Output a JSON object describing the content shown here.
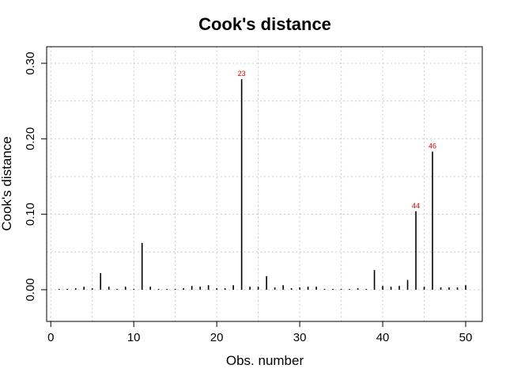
{
  "chart_data": {
    "type": "bar",
    "title": "Cook's distance",
    "xlabel": "Obs. number",
    "ylabel": "Cook's distance",
    "xlim": [
      -0.5,
      52
    ],
    "ylim": [
      -0.042,
      0.322
    ],
    "xticks": [
      0,
      10,
      20,
      30,
      40,
      50
    ],
    "yticks": [
      0.0,
      0.1,
      0.2,
      0.3
    ],
    "ytick_labels": [
      "0.00",
      "0.10",
      "0.20",
      "0.30"
    ],
    "grid": true,
    "bar_color": "#000000",
    "annotation_color": "#dd0000",
    "x": [
      1,
      2,
      3,
      4,
      5,
      6,
      7,
      8,
      9,
      10,
      11,
      12,
      13,
      14,
      15,
      16,
      17,
      18,
      19,
      20,
      21,
      22,
      23,
      24,
      25,
      26,
      27,
      28,
      29,
      30,
      31,
      32,
      33,
      34,
      35,
      36,
      37,
      38,
      39,
      40,
      41,
      42,
      43,
      44,
      45,
      46,
      47,
      48,
      49,
      50
    ],
    "values": [
      0.001,
      0.001,
      0.002,
      0.004,
      0.002,
      0.022,
      0.004,
      0.001,
      0.004,
      0.001,
      0.062,
      0.004,
      0.001,
      0.001,
      0.001,
      0.002,
      0.005,
      0.004,
      0.006,
      0.002,
      0.002,
      0.006,
      0.279,
      0.004,
      0.004,
      0.018,
      0.003,
      0.006,
      0.002,
      0.003,
      0.004,
      0.004,
      0.001,
      0.001,
      0.001,
      0.001,
      0.002,
      0.001,
      0.026,
      0.005,
      0.004,
      0.005,
      0.013,
      0.104,
      0.004,
      0.183,
      0.003,
      0.003,
      0.003,
      0.006
    ],
    "annotations": [
      {
        "x": 23,
        "y": 0.279,
        "label": "23"
      },
      {
        "x": 44,
        "y": 0.104,
        "label": "44"
      },
      {
        "x": 46,
        "y": 0.183,
        "label": "46"
      }
    ]
  }
}
